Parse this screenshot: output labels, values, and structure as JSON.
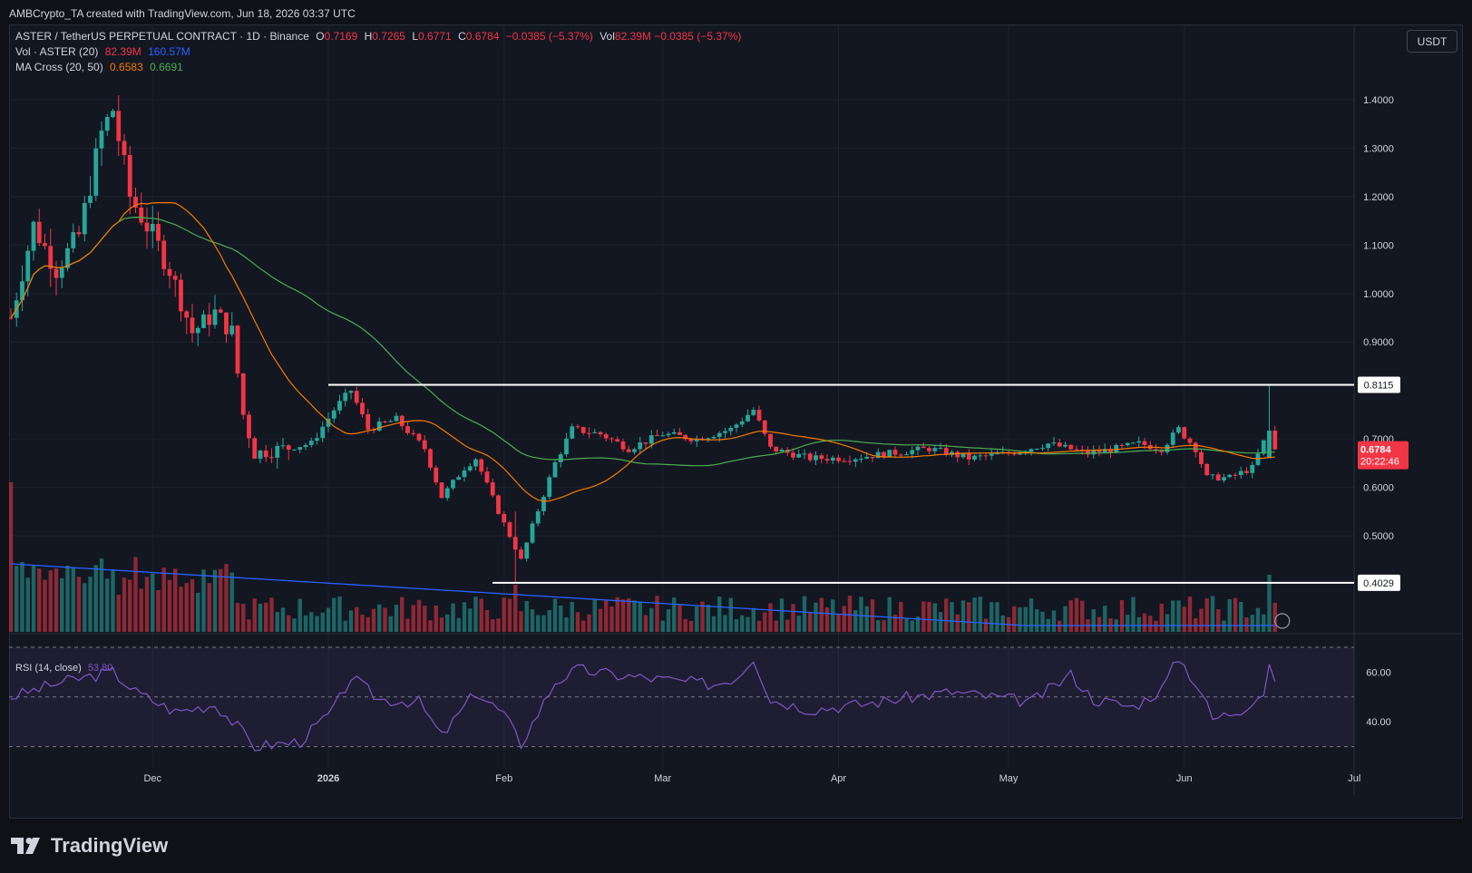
{
  "header": {
    "created_by": "AMBCrypto_TA created with TradingView.com, Jun 18, 2026 03:37 UTC"
  },
  "legend": {
    "symbol": "ASTER / TetherUS PERPETUAL CONTRACT · 1D · Binance",
    "o_label": "O",
    "o": "0.7169",
    "h_label": "H",
    "h": "0.7265",
    "l_label": "L",
    "l": "0.6771",
    "c_label": "C",
    "c": "0.6784",
    "change": "−0.0385 (−5.37%)",
    "vol_label": "Vol",
    "vol": "82.39M",
    "vol_change": "−0.0385 (−5.37%)",
    "volume_title": "Vol · ASTER (20)",
    "volume_value": "82.39M",
    "volume_ma": "160.57M",
    "ma_title": "MA Cross (20, 50)",
    "ma20": "0.6583",
    "ma50": "0.6691",
    "rsi_title": "RSI (14, close)",
    "rsi_value": "53.80"
  },
  "currency": "USDT",
  "branding": {
    "name": "TradingView"
  },
  "colors": {
    "up": "#26a69a",
    "down": "#f23645",
    "ma20": "#f57c00",
    "ma50": "#4caf50",
    "vol_ma": "#2962ff",
    "rsi": "#7e57c2",
    "bg": "#131722"
  },
  "chart_data": [
    {
      "type": "candlestick",
      "title": "ASTER / TetherUS PERPETUAL CONTRACT · 1D · Binance",
      "x_ticks": [
        "Dec",
        "2026",
        "Feb",
        "Mar",
        "Apr",
        "May",
        "Jun",
        "Jul"
      ],
      "y_ticks": [
        "1.4000",
        "1.3000",
        "1.2000",
        "1.1000",
        "1.0000",
        "0.9000",
        "0.7000",
        "0.6000",
        "0.5000"
      ],
      "ylim": [
        0.25,
        1.5
      ],
      "horizontal_levels": [
        {
          "value": 0.8115,
          "label": "0.8115"
        },
        {
          "value": 0.4029,
          "label": "0.4029"
        }
      ],
      "last_price": {
        "label": "0.6784",
        "countdown": "20:22:46"
      },
      "series_ohlc_approx": [
        {
          "name": "segment",
          "start_date": "2025-11-06",
          "end_date": "2026-06-17"
        }
      ],
      "shape_points": [
        [
          "2025-11-06",
          0.95
        ],
        [
          "2025-11-10",
          1.14
        ],
        [
          "2025-11-14",
          1.05
        ],
        [
          "2025-11-18",
          1.12
        ],
        [
          "2025-11-22",
          1.33
        ],
        [
          "2025-11-24",
          1.38
        ],
        [
          "2025-11-27",
          1.2
        ],
        [
          "2025-12-01",
          1.12
        ],
        [
          "2025-12-04",
          1.05
        ],
        [
          "2025-12-08",
          0.92
        ],
        [
          "2025-12-12",
          0.96
        ],
        [
          "2025-12-15",
          0.92
        ],
        [
          "2025-12-17",
          0.75
        ],
        [
          "2025-12-19",
          0.67
        ],
        [
          "2025-12-24",
          0.68
        ],
        [
          "2025-12-29",
          0.69
        ],
        [
          "2026-01-02",
          0.76
        ],
        [
          "2026-01-05",
          0.8
        ],
        [
          "2026-01-08",
          0.72
        ],
        [
          "2026-01-13",
          0.74
        ],
        [
          "2026-01-18",
          0.68
        ],
        [
          "2026-01-21",
          0.58
        ],
        [
          "2026-01-25",
          0.64
        ],
        [
          "2026-01-27",
          0.66
        ],
        [
          "2026-01-31",
          0.55
        ],
        [
          "2026-02-04",
          0.45
        ],
        [
          "2026-02-06",
          0.52
        ],
        [
          "2026-02-10",
          0.65
        ],
        [
          "2026-02-13",
          0.72
        ],
        [
          "2026-02-18",
          0.71
        ],
        [
          "2026-02-23",
          0.68
        ],
        [
          "2026-03-01",
          0.71
        ],
        [
          "2026-03-07",
          0.7
        ],
        [
          "2026-03-13",
          0.72
        ],
        [
          "2026-03-17",
          0.76
        ],
        [
          "2026-03-20",
          0.68
        ],
        [
          "2026-03-27",
          0.66
        ],
        [
          "2026-04-03",
          0.66
        ],
        [
          "2026-04-10",
          0.67
        ],
        [
          "2026-04-17",
          0.68
        ],
        [
          "2026-04-24",
          0.66
        ],
        [
          "2026-05-01",
          0.67
        ],
        [
          "2026-05-08",
          0.69
        ],
        [
          "2026-05-15",
          0.67
        ],
        [
          "2026-05-20",
          0.68
        ],
        [
          "2026-05-24",
          0.69
        ],
        [
          "2026-05-28",
          0.68
        ],
        [
          "2026-05-31",
          0.72
        ],
        [
          "2026-06-03",
          0.68
        ],
        [
          "2026-06-05",
          0.62
        ],
        [
          "2026-06-09",
          0.62
        ],
        [
          "2026-06-13",
          0.64
        ],
        [
          "2026-06-16",
          0.72
        ],
        [
          "2026-06-17",
          0.6784
        ]
      ]
    },
    {
      "type": "bar",
      "title": "Vol · ASTER (20)",
      "value": "82.39M",
      "ma": "160.57M"
    },
    {
      "type": "line",
      "title": "RSI (14, close)",
      "value": "53.80",
      "y_ticks": [
        "60.00",
        "40.00"
      ],
      "ylim": [
        25,
        75
      ],
      "bands": [
        70,
        50,
        30
      ],
      "shape_points": [
        [
          "2025-11-06",
          50
        ],
        [
          "2025-11-15",
          56
        ],
        [
          "2025-11-24",
          60
        ],
        [
          "2025-11-28",
          52
        ],
        [
          "2025-12-05",
          44
        ],
        [
          "2025-12-12",
          47
        ],
        [
          "2025-12-16",
          38
        ],
        [
          "2025-12-19",
          30
        ],
        [
          "2025-12-27",
          32
        ],
        [
          "2026-01-02",
          45
        ],
        [
          "2026-01-05",
          58
        ],
        [
          "2026-01-10",
          49
        ],
        [
          "2026-01-17",
          48
        ],
        [
          "2026-01-21",
          34
        ],
        [
          "2026-01-27",
          52
        ],
        [
          "2026-02-01",
          43
        ],
        [
          "2026-02-04",
          31
        ],
        [
          "2026-02-10",
          56
        ],
        [
          "2026-02-14",
          61
        ],
        [
          "2026-02-20",
          59
        ],
        [
          "2026-03-01",
          57
        ],
        [
          "2026-03-10",
          55
        ],
        [
          "2026-03-14",
          58
        ],
        [
          "2026-03-17",
          66
        ],
        [
          "2026-03-20",
          49
        ],
        [
          "2026-03-27",
          45
        ],
        [
          "2026-04-05",
          47
        ],
        [
          "2026-04-14",
          50
        ],
        [
          "2026-04-21",
          52
        ],
        [
          "2026-04-28",
          50
        ],
        [
          "2026-05-05",
          48
        ],
        [
          "2026-05-12",
          59
        ],
        [
          "2026-05-16",
          49
        ],
        [
          "2026-05-23",
          46
        ],
        [
          "2026-05-28",
          53
        ],
        [
          "2026-05-31",
          66
        ],
        [
          "2026-06-04",
          52
        ],
        [
          "2026-06-06",
          41
        ],
        [
          "2026-06-11",
          45
        ],
        [
          "2026-06-15",
          52
        ],
        [
          "2026-06-16",
          63
        ],
        [
          "2026-06-17",
          54
        ]
      ]
    }
  ]
}
